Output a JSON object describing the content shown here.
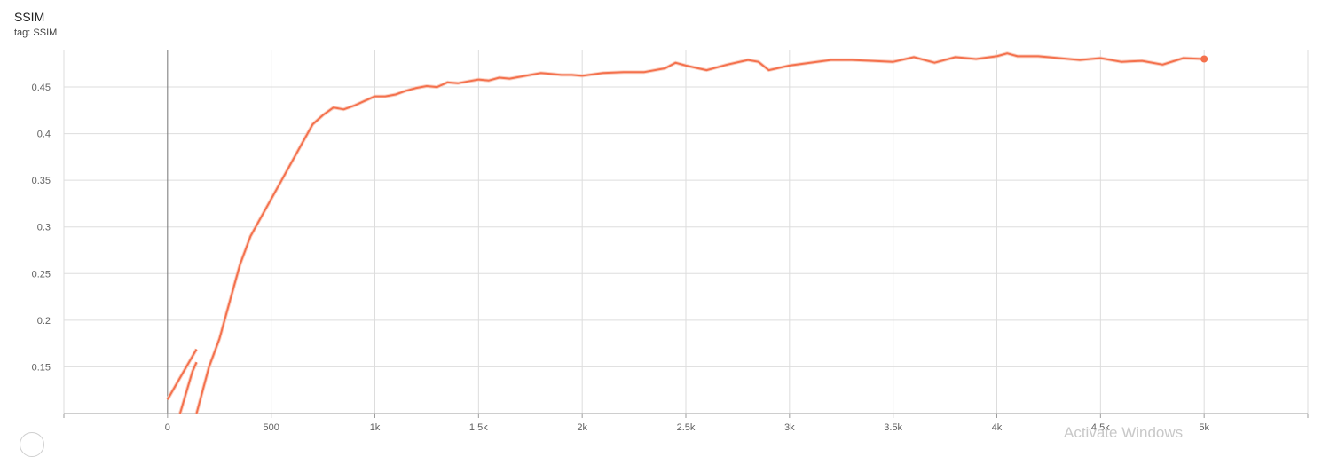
{
  "card": {
    "title": "SSIM",
    "tag": "tag: SSIM"
  },
  "watermark": "Activate Windows",
  "colors": {
    "line": "#f4714d",
    "line_light": "#f9c7b7",
    "grid": "#dddddd",
    "axis": "#9e9e9e",
    "zero_line": "#757575"
  },
  "chart_data": {
    "type": "line",
    "title": "SSIM",
    "xlabel": "",
    "ylabel": "",
    "xlim": [
      -500,
      5500
    ],
    "ylim": [
      0.1,
      0.49
    ],
    "x_ticks": [
      0,
      500,
      1000,
      1500,
      2000,
      2500,
      3000,
      3500,
      4000,
      4500,
      5000
    ],
    "x_tick_labels": [
      "0",
      "500",
      "1k",
      "1.5k",
      "2k",
      "2.5k",
      "3k",
      "3.5k",
      "4k",
      "4.5k",
      "5k"
    ],
    "y_ticks": [
      0.15,
      0.2,
      0.25,
      0.3,
      0.35,
      0.4,
      0.45
    ],
    "y_tick_labels": [
      "0.15",
      "0.2",
      "0.25",
      "0.3",
      "0.35",
      "0.4",
      "0.45"
    ],
    "grid": true,
    "legend": "none",
    "series": [
      {
        "values_x": [
          0,
          140
        ],
        "values_y": [
          0.115,
          0.169
        ]
      },
      {
        "values_x": [
          60,
          100,
          120,
          140
        ],
        "values_y": [
          0.1,
          0.13,
          0.145,
          0.155
        ]
      },
      {
        "values_x": [
          140,
          200,
          250,
          300,
          350,
          400,
          450,
          500,
          550,
          600,
          650,
          700,
          750,
          800,
          850,
          900,
          950,
          1000,
          1050,
          1100,
          1150,
          1200,
          1250,
          1300,
          1350,
          1400,
          1450,
          1500,
          1550,
          1600,
          1650,
          1700,
          1750,
          1800,
          1850,
          1900,
          1950,
          2000,
          2100,
          2200,
          2300,
          2400,
          2450,
          2500,
          2600,
          2700,
          2800,
          2850,
          2900,
          3000,
          3100,
          3200,
          3300,
          3400,
          3500,
          3600,
          3700,
          3800,
          3900,
          4000,
          4050,
          4100,
          4200,
          4300,
          4400,
          4500,
          4600,
          4700,
          4800,
          4900,
          5000
        ],
        "values_y": [
          0.1,
          0.15,
          0.18,
          0.22,
          0.26,
          0.29,
          0.31,
          0.33,
          0.35,
          0.37,
          0.39,
          0.41,
          0.42,
          0.428,
          0.426,
          0.43,
          0.435,
          0.44,
          0.44,
          0.442,
          0.446,
          0.449,
          0.451,
          0.45,
          0.455,
          0.454,
          0.456,
          0.458,
          0.457,
          0.46,
          0.459,
          0.461,
          0.463,
          0.465,
          0.464,
          0.463,
          0.463,
          0.462,
          0.465,
          0.466,
          0.466,
          0.47,
          0.476,
          0.473,
          0.468,
          0.474,
          0.479,
          0.477,
          0.468,
          0.473,
          0.476,
          0.479,
          0.479,
          0.478,
          0.477,
          0.482,
          0.476,
          0.482,
          0.48,
          0.483,
          0.486,
          0.483,
          0.483,
          0.481,
          0.479,
          0.481,
          0.477,
          0.478,
          0.474,
          0.481,
          0.48
        ]
      }
    ]
  }
}
